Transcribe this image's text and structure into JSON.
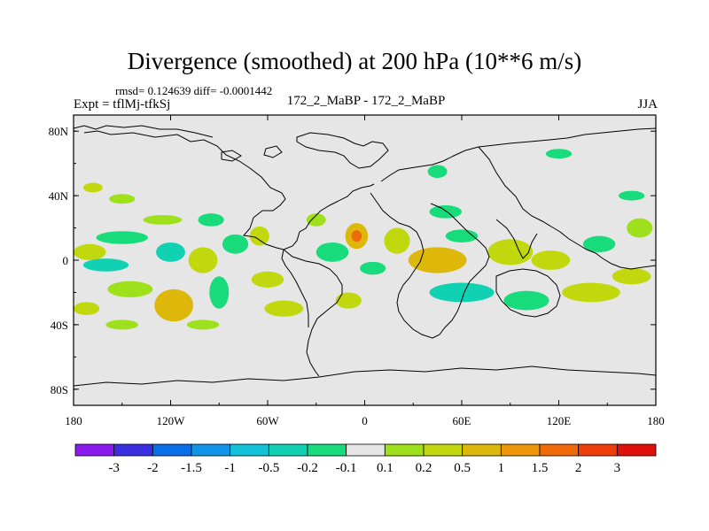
{
  "chart_data": {
    "type": "heatmap",
    "title": "Divergence (smoothed) at 200 hPa (10**6 m/s)",
    "stats_text": "rmsd= 0.124639 diff= -0.0001442",
    "expt_label": "Expt = tflMj-tfkSj",
    "case_label": "172_2_MaBP - 172_2_MaBP",
    "season": "JJA",
    "xlabel": "",
    "ylabel": "",
    "xlim": [
      -180,
      180
    ],
    "ylim": [
      -90,
      90
    ],
    "x_ticks": [
      {
        "value": -180,
        "label": "180"
      },
      {
        "value": -120,
        "label": "120W"
      },
      {
        "value": -60,
        "label": "60W"
      },
      {
        "value": 0,
        "label": "0"
      },
      {
        "value": 60,
        "label": "60E"
      },
      {
        "value": 120,
        "label": "120E"
      },
      {
        "value": 180,
        "label": "180"
      }
    ],
    "y_ticks": [
      {
        "value": 80,
        "label": "80N"
      },
      {
        "value": 40,
        "label": "40N"
      },
      {
        "value": 0,
        "label": "0"
      },
      {
        "value": -40,
        "label": "40S"
      },
      {
        "value": -80,
        "label": "80S"
      }
    ],
    "colorbar": {
      "colors": [
        "#8a1cf0",
        "#3a2fe0",
        "#0a6ee8",
        "#1095e8",
        "#12c2d8",
        "#10d2b2",
        "#18db7c",
        "#e6e6e6",
        "#9fe01c",
        "#c2d80e",
        "#ddb80a",
        "#ec960a",
        "#f06a0a",
        "#ee3e0c",
        "#e0100c"
      ],
      "tick_labels": [
        "-3",
        "-2",
        "-1.5",
        "-1",
        "-0.5",
        "-0.2",
        "-0.1",
        "0.1",
        "0.2",
        "0.5",
        "1",
        "1.5",
        "2",
        "3"
      ]
    },
    "background_color": "#e6e6e6",
    "fields": [
      {
        "lon": -170,
        "lat": 5,
        "rx": 10,
        "ry": 5,
        "value": 0.3
      },
      {
        "lon": -150,
        "lat": 14,
        "rx": 16,
        "ry": 4,
        "value": -0.15
      },
      {
        "lon": -160,
        "lat": -3,
        "rx": 14,
        "ry": 4,
        "value": -0.3
      },
      {
        "lon": -145,
        "lat": -18,
        "rx": 14,
        "ry": 5,
        "value": 0.15
      },
      {
        "lon": -172,
        "lat": -30,
        "rx": 8,
        "ry": 4,
        "value": 0.2
      },
      {
        "lon": -168,
        "lat": 45,
        "rx": 6,
        "ry": 3,
        "value": 0.2
      },
      {
        "lon": -150,
        "lat": 38,
        "rx": 8,
        "ry": 3,
        "value": 0.15
      },
      {
        "lon": -125,
        "lat": 25,
        "rx": 12,
        "ry": 3,
        "value": 0.15
      },
      {
        "lon": -120,
        "lat": 5,
        "rx": 9,
        "ry": 6,
        "value": -0.3
      },
      {
        "lon": -100,
        "lat": 0,
        "rx": 9,
        "ry": 8,
        "value": 0.25
      },
      {
        "lon": -118,
        "lat": -28,
        "rx": 12,
        "ry": 10,
        "value": 0.5
      },
      {
        "lon": -95,
        "lat": 25,
        "rx": 8,
        "ry": 4,
        "value": -0.15
      },
      {
        "lon": -80,
        "lat": 10,
        "rx": 8,
        "ry": 6,
        "value": -0.2
      },
      {
        "lon": -90,
        "lat": -20,
        "rx": 6,
        "ry": 10,
        "value": -0.2
      },
      {
        "lon": -65,
        "lat": 15,
        "rx": 6,
        "ry": 6,
        "value": 0.2
      },
      {
        "lon": -60,
        "lat": -12,
        "rx": 10,
        "ry": 5,
        "value": 0.2
      },
      {
        "lon": -50,
        "lat": -30,
        "rx": 12,
        "ry": 5,
        "value": 0.2
      },
      {
        "lon": -30,
        "lat": 25,
        "rx": 6,
        "ry": 4,
        "value": 0.15
      },
      {
        "lon": -20,
        "lat": 5,
        "rx": 10,
        "ry": 6,
        "value": -0.2
      },
      {
        "lon": -5,
        "lat": 15,
        "rx": 7,
        "ry": 8,
        "value": 0.9
      },
      {
        "lon": -10,
        "lat": -25,
        "rx": 8,
        "ry": 5,
        "value": 0.2
      },
      {
        "lon": 5,
        "lat": -5,
        "rx": 8,
        "ry": 4,
        "value": -0.2
      },
      {
        "lon": 20,
        "lat": 12,
        "rx": 8,
        "ry": 8,
        "value": 0.3
      },
      {
        "lon": 45,
        "lat": 0,
        "rx": 18,
        "ry": 8,
        "value": 0.5
      },
      {
        "lon": 60,
        "lat": -20,
        "rx": 20,
        "ry": 6,
        "value": -0.3
      },
      {
        "lon": 50,
        "lat": 30,
        "rx": 10,
        "ry": 4,
        "value": -0.15
      },
      {
        "lon": 60,
        "lat": 15,
        "rx": 10,
        "ry": 4,
        "value": -0.2
      },
      {
        "lon": 90,
        "lat": 5,
        "rx": 14,
        "ry": 8,
        "value": 0.4
      },
      {
        "lon": 115,
        "lat": 0,
        "rx": 12,
        "ry": 6,
        "value": 0.3
      },
      {
        "lon": 100,
        "lat": -25,
        "rx": 14,
        "ry": 6,
        "value": -0.2
      },
      {
        "lon": 140,
        "lat": -20,
        "rx": 18,
        "ry": 6,
        "value": 0.2
      },
      {
        "lon": 145,
        "lat": 10,
        "rx": 10,
        "ry": 5,
        "value": -0.2
      },
      {
        "lon": 165,
        "lat": -10,
        "rx": 12,
        "ry": 5,
        "value": 0.2
      },
      {
        "lon": 170,
        "lat": 20,
        "rx": 8,
        "ry": 6,
        "value": 0.15
      },
      {
        "lon": 45,
        "lat": 55,
        "rx": 6,
        "ry": 4,
        "value": -0.15
      },
      {
        "lon": 120,
        "lat": 66,
        "rx": 8,
        "ry": 3,
        "value": -0.15
      },
      {
        "lon": 165,
        "lat": 40,
        "rx": 8,
        "ry": 3,
        "value": -0.15
      },
      {
        "lon": -100,
        "lat": -40,
        "rx": 10,
        "ry": 3,
        "value": 0.15
      },
      {
        "lon": -150,
        "lat": -40,
        "rx": 10,
        "ry": 3,
        "value": 0.15
      }
    ]
  }
}
